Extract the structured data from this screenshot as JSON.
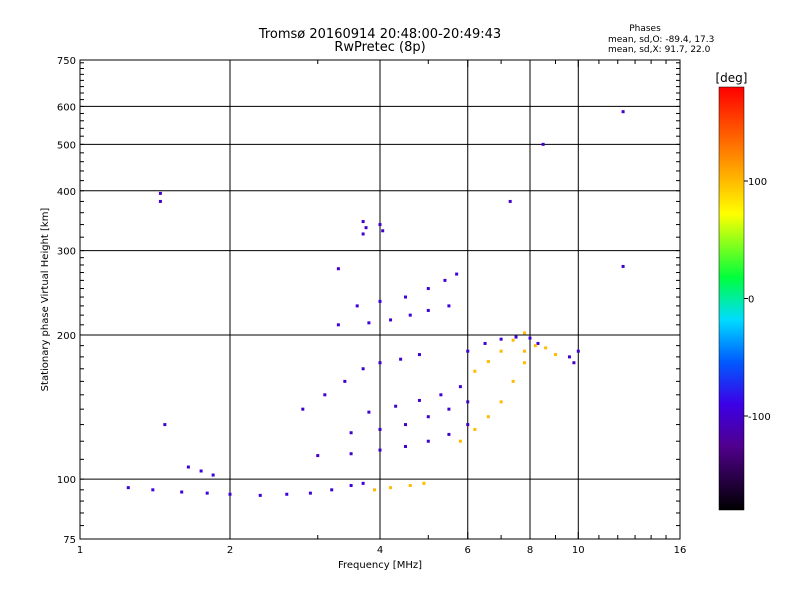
{
  "header": {
    "title_line1": "Tromsø 20160914 20:48:00-20:49:43",
    "title_line2": "RwPretec (8p)"
  },
  "stats": {
    "heading": "Phases",
    "o_line": "mean, sd,O: -89.4, 17.3",
    "x_line": "mean, sd,X:  91.7, 22.0"
  },
  "chart_data": {
    "type": "scatter",
    "xlabel": "Frequency [MHz]",
    "ylabel": "Stationary phase Virtual Height [km]",
    "xscale": "log",
    "yscale": "log",
    "xlim": [
      1,
      16
    ],
    "ylim": [
      75,
      750
    ],
    "x_ticks": [
      1,
      2,
      4,
      6,
      8,
      10,
      16
    ],
    "y_ticks": [
      75,
      100,
      200,
      300,
      400,
      500,
      600,
      750
    ],
    "grid_x": [
      2,
      4,
      6,
      8,
      10
    ],
    "grid_y": [
      100,
      200,
      300,
      400,
      500,
      600
    ],
    "colorbar": {
      "label": "[deg]",
      "range": [
        -180,
        180
      ],
      "ticks": [
        100,
        0,
        -100
      ]
    },
    "traces": [
      {
        "name": "",
        "phase": -95,
        "points": [
          [
            1.25,
            96
          ],
          [
            1.4,
            95
          ],
          [
            1.6,
            94
          ],
          [
            1.8,
            93.5
          ],
          [
            2.0,
            93
          ],
          [
            2.3,
            92.5
          ],
          [
            2.6,
            93
          ],
          [
            2.9,
            93.5
          ],
          [
            3.2,
            95
          ],
          [
            3.5,
            97
          ],
          [
            3.7,
            98
          ]
        ]
      },
      {
        "name": "",
        "phase": -95,
        "points": [
          [
            1.65,
            106
          ],
          [
            1.75,
            104
          ],
          [
            1.85,
            102
          ]
        ]
      },
      {
        "name": "",
        "phase": -100,
        "points": [
          [
            3.0,
            112
          ],
          [
            3.5,
            113
          ],
          [
            4.0,
            115
          ],
          [
            4.5,
            117
          ],
          [
            5.0,
            120
          ],
          [
            5.5,
            124
          ],
          [
            6.0,
            130
          ]
        ]
      },
      {
        "name": "",
        "phase": -100,
        "points": [
          [
            3.5,
            125
          ],
          [
            4.0,
            127
          ],
          [
            4.5,
            130
          ],
          [
            5.0,
            135
          ],
          [
            5.5,
            140
          ],
          [
            6.0,
            145
          ]
        ]
      },
      {
        "name": "",
        "phase": -100,
        "points": [
          [
            3.8,
            138
          ],
          [
            4.3,
            142
          ],
          [
            4.8,
            146
          ],
          [
            5.3,
            150
          ],
          [
            5.8,
            156
          ]
        ]
      },
      {
        "name": "",
        "phase": -100,
        "points": [
          [
            2.8,
            140
          ],
          [
            3.1,
            150
          ],
          [
            3.4,
            160
          ],
          [
            3.7,
            170
          ],
          [
            4.0,
            175
          ],
          [
            4.4,
            178
          ],
          [
            4.8,
            182
          ]
        ]
      },
      {
        "name": "",
        "phase": -95,
        "points": [
          [
            3.3,
            210
          ],
          [
            3.8,
            212
          ],
          [
            4.2,
            215
          ],
          [
            4.6,
            220
          ],
          [
            5.0,
            225
          ],
          [
            5.5,
            230
          ]
        ]
      },
      {
        "name": "",
        "phase": -95,
        "points": [
          [
            3.6,
            230
          ],
          [
            4.0,
            235
          ],
          [
            4.5,
            240
          ],
          [
            5.0,
            250
          ],
          [
            5.4,
            260
          ],
          [
            5.7,
            268
          ]
        ]
      },
      {
        "name": "",
        "phase": -95,
        "points": [
          [
            6.0,
            185
          ],
          [
            6.5,
            192
          ],
          [
            7.0,
            196
          ],
          [
            7.5,
            198
          ],
          [
            8.0,
            197
          ],
          [
            8.3,
            192
          ]
        ]
      },
      {
        "name": "",
        "phase": 100,
        "points": [
          [
            3.9,
            95
          ],
          [
            4.2,
            96
          ],
          [
            4.6,
            97
          ],
          [
            4.9,
            98
          ]
        ]
      },
      {
        "name": "",
        "phase": 100,
        "points": [
          [
            5.8,
            120
          ],
          [
            6.2,
            127
          ],
          [
            6.6,
            135
          ],
          [
            7.0,
            145
          ],
          [
            7.4,
            160
          ],
          [
            7.8,
            175
          ]
        ]
      },
      {
        "name": "",
        "phase": 100,
        "points": [
          [
            6.2,
            168
          ],
          [
            6.6,
            176
          ],
          [
            7.0,
            185
          ],
          [
            7.4,
            195
          ],
          [
            7.8,
            202
          ]
        ]
      },
      {
        "name": "",
        "phase": 100,
        "points": [
          [
            7.8,
            185
          ],
          [
            8.2,
            190
          ],
          [
            8.6,
            188
          ],
          [
            9.0,
            182
          ]
        ]
      },
      {
        "name": "",
        "phase": -100,
        "points": [
          [
            1.45,
            380
          ],
          [
            1.45,
            395
          ],
          [
            1.48,
            130
          ],
          [
            3.7,
            325
          ],
          [
            3.75,
            335
          ],
          [
            3.7,
            345
          ],
          [
            4.0,
            340
          ],
          [
            4.05,
            330
          ],
          [
            7.3,
            380
          ],
          [
            9.8,
            175
          ],
          [
            9.6,
            180
          ],
          [
            10.0,
            185
          ],
          [
            12.3,
            278
          ],
          [
            12.3,
            585
          ],
          [
            8.5,
            500
          ],
          [
            3.3,
            275
          ]
        ]
      }
    ]
  }
}
